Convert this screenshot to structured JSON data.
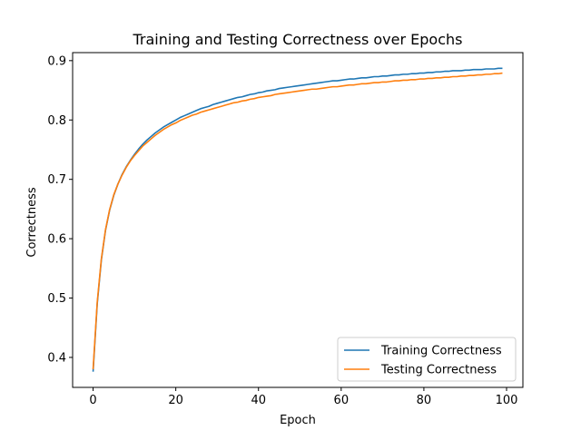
{
  "chart_data": {
    "type": "line",
    "title": "Training and Testing Correctness over Epochs",
    "xlabel": "Epoch",
    "ylabel": "Correctness",
    "xlim": [
      -4.95,
      103.95
    ],
    "ylim": [
      0.3495,
      0.9135
    ],
    "xticks": [
      0,
      20,
      40,
      60,
      80,
      100
    ],
    "yticks": [
      0.4,
      0.5,
      0.6,
      0.7,
      0.8,
      0.9
    ],
    "xtick_labels": [
      "0",
      "20",
      "40",
      "60",
      "80",
      "100"
    ],
    "ytick_labels": [
      "0.4",
      "0.5",
      "0.6",
      "0.7",
      "0.8",
      "0.9"
    ],
    "grid": false,
    "legend_position": "lower-right",
    "x": [
      0,
      1,
      2,
      3,
      4,
      5,
      6,
      7,
      8,
      9,
      10,
      11,
      12,
      13,
      14,
      15,
      16,
      17,
      18,
      19,
      20,
      21,
      22,
      23,
      24,
      25,
      26,
      27,
      28,
      29,
      30,
      31,
      32,
      33,
      34,
      35,
      36,
      37,
      38,
      39,
      40,
      41,
      42,
      43,
      44,
      45,
      46,
      47,
      48,
      49,
      50,
      51,
      52,
      53,
      54,
      55,
      56,
      57,
      58,
      59,
      60,
      61,
      62,
      63,
      64,
      65,
      66,
      67,
      68,
      69,
      70,
      71,
      72,
      73,
      74,
      75,
      76,
      77,
      78,
      79,
      80,
      81,
      82,
      83,
      84,
      85,
      86,
      87,
      88,
      89,
      90,
      91,
      92,
      93,
      94,
      95,
      96,
      97,
      98,
      99
    ],
    "series": [
      {
        "name": "Training Correctness",
        "color": "#1f77b4",
        "values": [
          0.376,
          0.49,
          0.564,
          0.614,
          0.648,
          0.673,
          0.692,
          0.708,
          0.721,
          0.732,
          0.742,
          0.751,
          0.759,
          0.766,
          0.772,
          0.778,
          0.783,
          0.788,
          0.792,
          0.796,
          0.8,
          0.804,
          0.807,
          0.81,
          0.813,
          0.816,
          0.819,
          0.821,
          0.823,
          0.826,
          0.828,
          0.83,
          0.832,
          0.834,
          0.836,
          0.838,
          0.839,
          0.841,
          0.843,
          0.844,
          0.846,
          0.847,
          0.849,
          0.85,
          0.851,
          0.853,
          0.854,
          0.855,
          0.856,
          0.857,
          0.858,
          0.859,
          0.86,
          0.861,
          0.862,
          0.863,
          0.864,
          0.865,
          0.866,
          0.866,
          0.867,
          0.868,
          0.869,
          0.869,
          0.87,
          0.871,
          0.871,
          0.872,
          0.873,
          0.873,
          0.874,
          0.874,
          0.875,
          0.876,
          0.876,
          0.877,
          0.877,
          0.878,
          0.878,
          0.879,
          0.879,
          0.88,
          0.88,
          0.881,
          0.881,
          0.882,
          0.882,
          0.883,
          0.883,
          0.883,
          0.884,
          0.884,
          0.885,
          0.885,
          0.885,
          0.886,
          0.886,
          0.886,
          0.887,
          0.887
        ]
      },
      {
        "name": "Testing Correctness",
        "color": "#ff7f0e",
        "values": [
          0.38,
          0.493,
          0.566,
          0.615,
          0.649,
          0.674,
          0.692,
          0.707,
          0.72,
          0.731,
          0.74,
          0.748,
          0.756,
          0.762,
          0.768,
          0.774,
          0.779,
          0.784,
          0.788,
          0.792,
          0.795,
          0.799,
          0.802,
          0.805,
          0.808,
          0.81,
          0.813,
          0.815,
          0.817,
          0.819,
          0.821,
          0.823,
          0.825,
          0.827,
          0.829,
          0.83,
          0.832,
          0.833,
          0.835,
          0.836,
          0.838,
          0.839,
          0.84,
          0.841,
          0.843,
          0.844,
          0.845,
          0.846,
          0.847,
          0.848,
          0.849,
          0.85,
          0.851,
          0.852,
          0.852,
          0.853,
          0.854,
          0.855,
          0.856,
          0.856,
          0.857,
          0.858,
          0.859,
          0.859,
          0.86,
          0.861,
          0.861,
          0.862,
          0.863,
          0.863,
          0.864,
          0.864,
          0.865,
          0.866,
          0.866,
          0.867,
          0.867,
          0.868,
          0.868,
          0.869,
          0.869,
          0.87,
          0.87,
          0.871,
          0.871,
          0.872,
          0.872,
          0.873,
          0.873,
          0.874,
          0.874,
          0.875,
          0.875,
          0.876,
          0.876,
          0.877,
          0.877,
          0.878,
          0.878,
          0.879
        ]
      }
    ]
  }
}
